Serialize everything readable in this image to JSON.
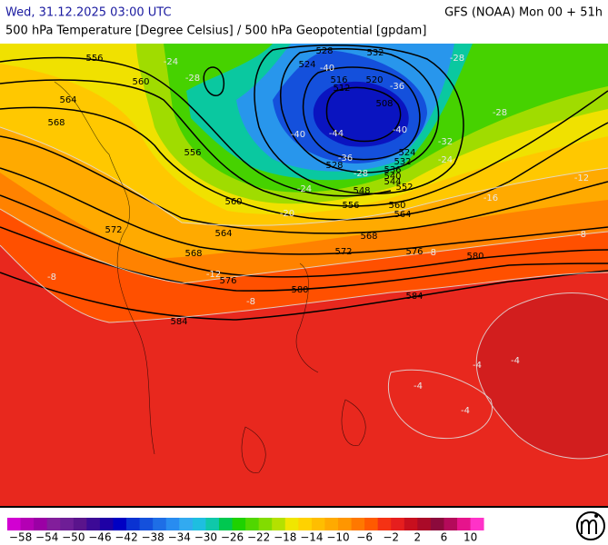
{
  "header": {
    "datetime": "Wed, 31.12.2025 03:00 UTC",
    "model": "GFS (NOAA) Mon 00 + 51h",
    "subtitle": "500 hPa Temperature [Degree Celsius] / 500 hPa Geopotential [gpdam]"
  },
  "map": {
    "geopotential_labels": [
      "556",
      "560",
      "564",
      "568",
      "556",
      "560",
      "564",
      "572",
      "568",
      "576",
      "580",
      "584",
      "528",
      "532",
      "524",
      "516",
      "512",
      "520",
      "508",
      "528",
      "524",
      "532",
      "536",
      "540",
      "544",
      "552",
      "548",
      "556",
      "560",
      "564",
      "568",
      "572",
      "576",
      "580",
      "584"
    ],
    "temperature_labels": [
      "-24",
      "-28",
      "-40",
      "-36",
      "-40",
      "-44",
      "-40",
      "-36",
      "-32",
      "-28",
      "-28",
      "-28",
      "-24",
      "-24",
      "-20",
      "-16",
      "-12",
      "-8",
      "-8",
      "-8",
      "-12",
      "-8",
      "-4",
      "-4",
      "-4",
      "-4"
    ]
  },
  "colorbar": {
    "labels": [
      "−58",
      "−54",
      "−50",
      "−46",
      "−42",
      "−38",
      "−34",
      "−30",
      "−26",
      "−22",
      "−18",
      "−14",
      "−10",
      "−6",
      "−2",
      "2",
      "6",
      "10"
    ],
    "colors": [
      "#d200d2",
      "#b400b4",
      "#9b00a5",
      "#821e9b",
      "#6e1e96",
      "#5a148c",
      "#3c0a96",
      "#1e00a5",
      "#0000c3",
      "#0a32d2",
      "#1450dc",
      "#1e6ee6",
      "#288cf0",
      "#32aaf0",
      "#1ebee0",
      "#0fc8aa",
      "#00c850",
      "#1ed200",
      "#50d700",
      "#82dc00",
      "#b4e100",
      "#f0e600",
      "#ffd200",
      "#ffbe00",
      "#ffaa00",
      "#ff9600",
      "#ff7800",
      "#ff5a00",
      "#f53214",
      "#e61e1e",
      "#c80f1e",
      "#aa0a28",
      "#8c0a3c",
      "#b40a5a",
      "#e6148c",
      "#ff32c8"
    ]
  }
}
